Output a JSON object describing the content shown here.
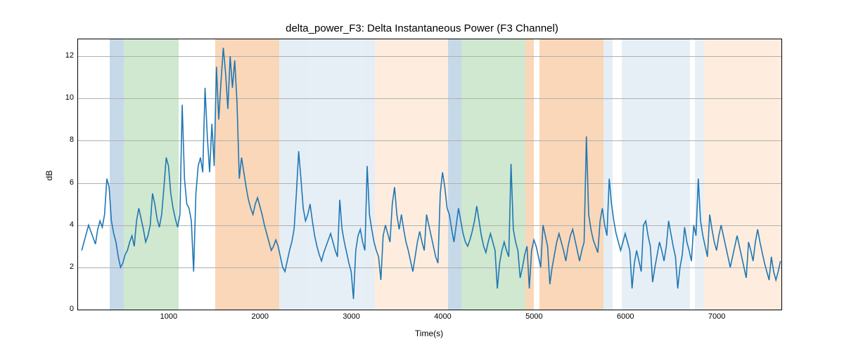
{
  "chart": {
    "type": "line",
    "title": "delta_power_F3: Delta Instantaneous Power (F3 Channel)",
    "xlabel": "Time(s)",
    "ylabel": "dB",
    "background_color": "#ffffff",
    "grid_color": "#b0b0b0",
    "border_color": "#000000",
    "line_color": "#1f77b4",
    "line_width": 1.6,
    "title_fontsize": 15,
    "label_fontsize": 12,
    "tick_fontsize": 11,
    "xlim": [
      0,
      7700
    ],
    "ylim": [
      0,
      12.8
    ],
    "xticks": [
      1000,
      2000,
      3000,
      4000,
      5000,
      6000,
      7000
    ],
    "yticks": [
      0,
      2,
      4,
      6,
      8,
      10,
      12
    ],
    "bands": [
      {
        "start": 350,
        "end": 500,
        "color": "#a8c5dd",
        "opacity": 0.65
      },
      {
        "start": 500,
        "end": 1100,
        "color": "#a8d5a8",
        "opacity": 0.55
      },
      {
        "start": 1500,
        "end": 2200,
        "color": "#f5b77d",
        "opacity": 0.55
      },
      {
        "start": 2200,
        "end": 2500,
        "color": "#d5e3ef",
        "opacity": 0.6
      },
      {
        "start": 2500,
        "end": 3150,
        "color": "#e8eff5",
        "opacity": 0.55
      },
      {
        "start": 2500,
        "end": 3150,
        "color": "#d5e3ef",
        "opacity": 0.35
      },
      {
        "start": 3150,
        "end": 3250,
        "color": "#d5e3ef",
        "opacity": 0.6
      },
      {
        "start": 3250,
        "end": 4050,
        "color": "#fde4cc",
        "opacity": 0.65
      },
      {
        "start": 4050,
        "end": 4200,
        "color": "#a8c5dd",
        "opacity": 0.65
      },
      {
        "start": 4200,
        "end": 4900,
        "color": "#a8d5a8",
        "opacity": 0.55
      },
      {
        "start": 4900,
        "end": 4990,
        "color": "#f5b77d",
        "opacity": 0.55
      },
      {
        "start": 5050,
        "end": 5750,
        "color": "#f5b77d",
        "opacity": 0.55
      },
      {
        "start": 5750,
        "end": 5850,
        "color": "#d5e3ef",
        "opacity": 0.6
      },
      {
        "start": 5950,
        "end": 6700,
        "color": "#e8eff5",
        "opacity": 0.55
      },
      {
        "start": 5950,
        "end": 6700,
        "color": "#d5e3ef",
        "opacity": 0.35
      },
      {
        "start": 6750,
        "end": 6850,
        "color": "#d5e3ef",
        "opacity": 0.55
      },
      {
        "start": 6850,
        "end": 7700,
        "color": "#fde4cc",
        "opacity": 0.65
      }
    ],
    "data": {
      "x_step": 25,
      "x_start": 40,
      "y": [
        2.8,
        3.2,
        3.6,
        4.0,
        3.7,
        3.4,
        3.1,
        3.8,
        4.2,
        3.9,
        4.5,
        6.2,
        5.8,
        4.2,
        3.6,
        3.2,
        2.5,
        2.0,
        2.2,
        2.6,
        2.8,
        3.2,
        3.5,
        3.0,
        4.2,
        4.8,
        4.3,
        3.8,
        3.2,
        3.5,
        4.0,
        5.5,
        5.0,
        4.3,
        3.9,
        4.5,
        5.8,
        7.2,
        6.8,
        5.5,
        4.8,
        4.3,
        3.9,
        4.5,
        9.7,
        6.2,
        5.0,
        4.8,
        4.2,
        1.8,
        5.5,
        6.8,
        7.2,
        6.5,
        10.5,
        8.2,
        6.5,
        8.8,
        6.8,
        11.5,
        9.0,
        10.8,
        12.4,
        11.2,
        9.5,
        12.0,
        10.5,
        11.8,
        9.8,
        6.2,
        7.2,
        6.5,
        5.8,
        5.2,
        4.8,
        4.5,
        5.0,
        5.3,
        4.9,
        4.5,
        4.0,
        3.6,
        3.2,
        2.8,
        3.0,
        3.3,
        3.0,
        2.5,
        2.0,
        1.8,
        2.3,
        2.8,
        3.2,
        3.8,
        5.5,
        7.5,
        6.2,
        4.8,
        4.2,
        4.5,
        5.0,
        4.2,
        3.5,
        3.0,
        2.6,
        2.3,
        2.7,
        3.0,
        3.3,
        3.6,
        3.2,
        2.8,
        2.5,
        5.2,
        3.8,
        3.2,
        2.7,
        2.2,
        1.8,
        0.5,
        2.8,
        3.5,
        3.8,
        3.2,
        2.8,
        6.8,
        4.5,
        3.8,
        3.2,
        2.8,
        2.5,
        1.4,
        3.5,
        4.0,
        3.6,
        3.2,
        5.0,
        5.8,
        4.5,
        3.8,
        4.5,
        3.8,
        3.2,
        2.8,
        2.3,
        1.8,
        2.5,
        3.2,
        3.7,
        3.2,
        2.8,
        4.5,
        4.0,
        3.5,
        3.0,
        2.5,
        2.2,
        5.5,
        6.5,
        5.8,
        4.8,
        4.5,
        3.8,
        3.2,
        4.0,
        4.8,
        4.2,
        3.6,
        3.2,
        3.0,
        3.3,
        3.7,
        4.2,
        4.9,
        4.2,
        3.5,
        3.0,
        2.7,
        3.2,
        3.6,
        3.2,
        2.8,
        1.0,
        2.2,
        2.8,
        3.2,
        2.8,
        2.5,
        6.9,
        3.8,
        3.2,
        2.8,
        1.5,
        2.0,
        2.6,
        3.0,
        1.0,
        2.8,
        3.3,
        3.0,
        2.5,
        2.0,
        4.0,
        3.5,
        3.0,
        1.2,
        2.0,
        2.6,
        3.2,
        3.6,
        3.2,
        2.8,
        2.3,
        3.0,
        3.5,
        3.8,
        3.3,
        2.8,
        2.3,
        2.8,
        3.2,
        8.2,
        4.5,
        3.8,
        3.3,
        3.0,
        2.7,
        4.2,
        4.8,
        4.0,
        3.5,
        6.2,
        5.0,
        4.2,
        3.6,
        3.2,
        2.8,
        3.2,
        3.6,
        3.2,
        2.8,
        1.0,
        2.2,
        2.8,
        2.3,
        1.8,
        4.0,
        4.2,
        3.5,
        3.0,
        1.3,
        2.0,
        2.6,
        3.2,
        2.8,
        2.3,
        3.0,
        4.2,
        3.6,
        3.0,
        2.5,
        1.0,
        2.0,
        2.6,
        3.9,
        3.2,
        2.8,
        2.3,
        4.0,
        3.5,
        6.2,
        4.2,
        3.5,
        3.0,
        2.5,
        4.5,
        3.8,
        3.2,
        2.8,
        3.5,
        4.0,
        3.5,
        3.0,
        2.5,
        2.0,
        2.5,
        3.0,
        3.5,
        3.0,
        2.5,
        2.0,
        1.5,
        3.2,
        2.8,
        2.3,
        3.2,
        3.8,
        3.2,
        2.7,
        2.2,
        1.8,
        1.4,
        2.5,
        1.8,
        1.4,
        1.8,
        2.3
      ]
    }
  }
}
